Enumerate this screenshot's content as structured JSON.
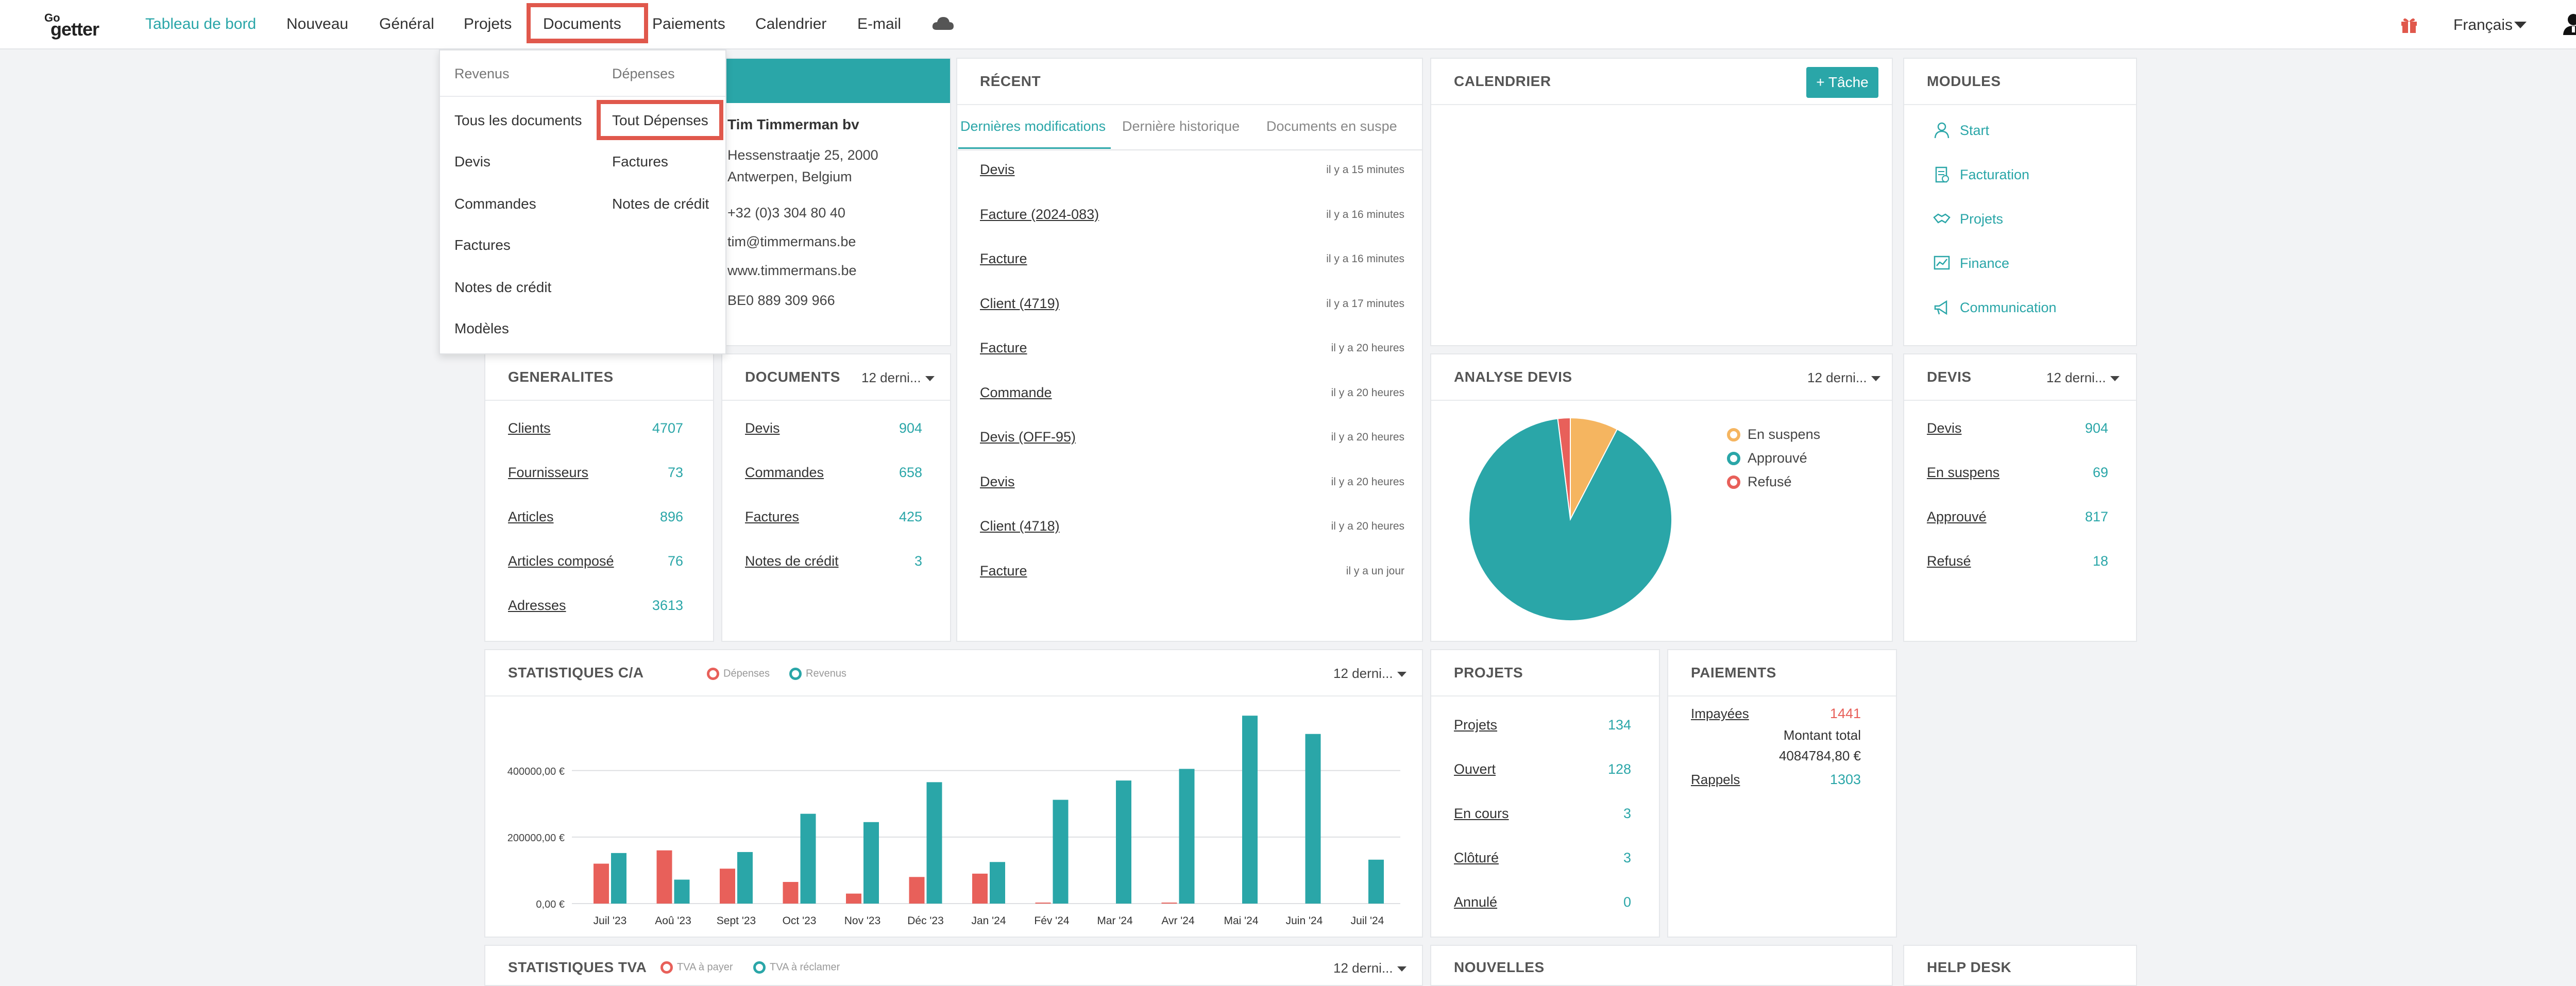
{
  "brand": {
    "logo_top": "Go",
    "logo_main": "getter"
  },
  "nav": {
    "items": [
      "Tableau de bord",
      "Nouveau",
      "Général",
      "Projets",
      "Documents",
      "Paiements",
      "Calendrier",
      "E-mail"
    ],
    "active": "Tableau de bord",
    "highlighted": "Documents",
    "language": "Français",
    "icons": [
      "cloud-icon",
      "gift-icon",
      "user-icon"
    ]
  },
  "documents_menu": {
    "revenus_header": "Revenus",
    "depenses_header": "Dépenses",
    "revenus_items": [
      "Tous les documents",
      "Devis",
      "Commandes",
      "Factures",
      "Notes de crédit",
      "Modèles"
    ],
    "depenses_items": [
      "Tout Dépenses",
      "Factures",
      "Notes de crédit"
    ],
    "highlighted": "Tout Dépenses"
  },
  "company": {
    "name": "Tim Timmerman bv",
    "address_line1": "Hessenstraatje 25, 2000",
    "address_line2": "Antwerpen, Belgium",
    "phone": "+32 (0)3 304 80 40",
    "email": "tim@timmermans.be",
    "website": "www.timmermans.be",
    "vat": "BE0 889 309 966"
  },
  "recent": {
    "title": "RÉCENT",
    "tabs": [
      "Dernières modifications",
      "Dernière historique",
      "Documents en suspe"
    ],
    "active_tab": "Dernières modifications",
    "items": [
      {
        "label": "Devis",
        "time": "il y a 15 minutes"
      },
      {
        "label": "Facture (2024-083)",
        "time": "il y a 16 minutes"
      },
      {
        "label": "Facture",
        "time": "il y a 16 minutes"
      },
      {
        "label": "Client (4719)",
        "time": "il y a 17 minutes"
      },
      {
        "label": "Facture",
        "time": "il y a 20 heures"
      },
      {
        "label": "Commande",
        "time": "il y a 20 heures"
      },
      {
        "label": "Devis (OFF-95)",
        "time": "il y a 20 heures"
      },
      {
        "label": "Devis",
        "time": "il y a 20 heures"
      },
      {
        "label": "Client (4718)",
        "time": "il y a 20 heures"
      },
      {
        "label": "Facture",
        "time": "il y a un jour"
      }
    ]
  },
  "calendar": {
    "title": "CALENDRIER",
    "task_button": "+ Tâche"
  },
  "modules": {
    "title": "MODULES",
    "items": [
      {
        "label": "Start",
        "icon": "person-icon"
      },
      {
        "label": "Facturation",
        "icon": "invoice-icon"
      },
      {
        "label": "Projets",
        "icon": "handshake-icon"
      },
      {
        "label": "Finance",
        "icon": "finance-chart-icon"
      },
      {
        "label": "Communication",
        "icon": "megaphone-icon"
      }
    ]
  },
  "generalites": {
    "title": "GENERALITES",
    "rows": [
      {
        "label": "Clients",
        "value": "4707"
      },
      {
        "label": "Fournisseurs",
        "value": "73"
      },
      {
        "label": "Articles",
        "value": "896"
      },
      {
        "label": "Articles composé",
        "value": "76"
      },
      {
        "label": "Adresses",
        "value": "3613"
      }
    ]
  },
  "documents": {
    "title": "DOCUMENTS",
    "dropdown": "12 derni...",
    "rows": [
      {
        "label": "Devis",
        "value": "904"
      },
      {
        "label": "Commandes",
        "value": "658"
      },
      {
        "label": "Factures",
        "value": "425"
      },
      {
        "label": "Notes de crédit",
        "value": "3"
      }
    ]
  },
  "analyse_devis": {
    "title": "ANALYSE DEVIS",
    "dropdown": "12 derni...",
    "legend": [
      {
        "label": "En suspens",
        "color": "#f5b560"
      },
      {
        "label": "Approuvé",
        "color": "#2aa6a8"
      },
      {
        "label": "Refusé",
        "color": "#e8605a"
      }
    ]
  },
  "devis": {
    "title": "DEVIS",
    "dropdown": "12 derni...",
    "rows": [
      {
        "label": "Devis",
        "value": "904"
      },
      {
        "label": "En suspens",
        "value": "69"
      },
      {
        "label": "Approuvé",
        "value": "817"
      },
      {
        "label": "Refusé",
        "value": "18"
      }
    ]
  },
  "stats_ca": {
    "title": "STATISTIQUES C/A",
    "dropdown": "12 derni...",
    "legend": [
      {
        "label": "Dépenses",
        "color": "#e8605a"
      },
      {
        "label": "Revenus",
        "color": "#2aa6a8"
      }
    ],
    "y_ticks": [
      "400000,00 €",
      "200000,00 €",
      "0,00 €"
    ]
  },
  "projets": {
    "title": "PROJETS",
    "rows": [
      {
        "label": "Projets",
        "value": "134"
      },
      {
        "label": "Ouvert",
        "value": "128"
      },
      {
        "label": "En cours",
        "value": "3"
      },
      {
        "label": "Clôturé",
        "value": "3"
      },
      {
        "label": "Annulé",
        "value": "0"
      }
    ]
  },
  "paiements": {
    "title": "PAIEMENTS",
    "unpaid_label": "Impayées",
    "unpaid_value": "1441",
    "total_label": "Montant total",
    "total_value": "4084784,80 €",
    "reminders_label": "Rappels",
    "reminders_value": "1303",
    "unpaid_color": "#e8605a"
  },
  "stats_tva": {
    "title": "STATISTIQUES TVA",
    "legend": [
      {
        "label": "TVA à payer",
        "color": "#e8605a"
      },
      {
        "label": "TVA à réclamer",
        "color": "#2aa6a8"
      }
    ],
    "dropdown": "12 derni..."
  },
  "nouvelles": {
    "title": "NOUVELLES"
  },
  "help_desk": {
    "title": "HELP DESK"
  },
  "chart_data": [
    {
      "type": "bar",
      "title": "STATISTIQUES C/A",
      "categories": [
        "Juil '23",
        "Aoû '23",
        "Sept '23",
        "Oct '23",
        "Nov '23",
        "Déc '23",
        "Jan '24",
        "Fév '24",
        "Mar '24",
        "Avr '24",
        "Mai '24",
        "Juin '24",
        "Juil '24"
      ],
      "series": [
        {
          "name": "Dépenses",
          "color": "#e8605a",
          "values": [
            120000,
            160000,
            105000,
            65000,
            30000,
            80000,
            90000,
            3000,
            0,
            3000,
            0,
            0,
            0
          ]
        },
        {
          "name": "Revenus",
          "color": "#2aa6a8",
          "values": [
            152000,
            72000,
            155000,
            270000,
            245000,
            365000,
            125000,
            312000,
            370000,
            405000,
            565000,
            510000,
            132000
          ]
        }
      ],
      "ylim": [
        0,
        570000
      ],
      "y_ticks": [
        0,
        200000,
        400000
      ],
      "grid": true,
      "legend": "top"
    },
    {
      "type": "pie",
      "title": "ANALYSE DEVIS",
      "categories": [
        "En suspens",
        "Approuvé",
        "Refusé"
      ],
      "values": [
        69,
        817,
        18
      ],
      "colors": [
        "#f5b560",
        "#2aa6a8",
        "#e8605a"
      ],
      "legend": "right"
    }
  ]
}
